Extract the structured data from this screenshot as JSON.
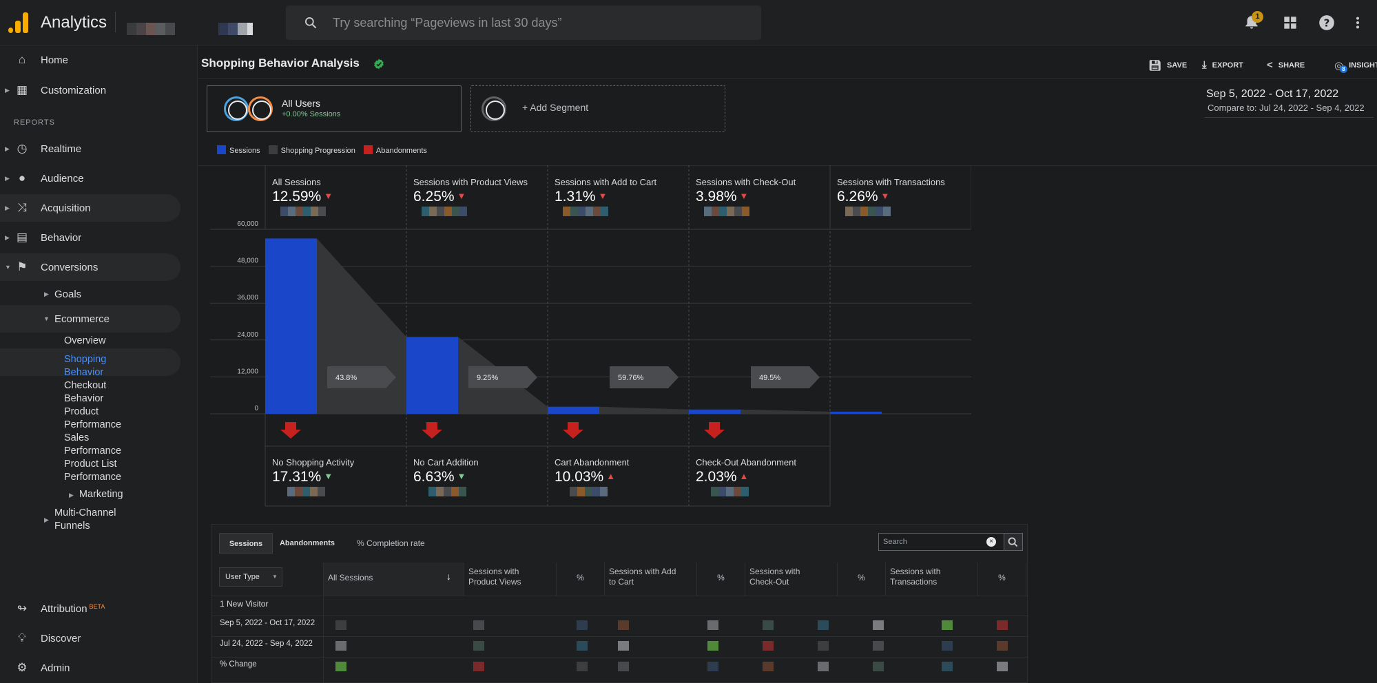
{
  "app": {
    "name": "Analytics",
    "search_placeholder": "Try searching “Pageviews in last 30 days”",
    "notification_count": "1"
  },
  "sidebar": {
    "home": "Home",
    "customization": "Customization",
    "reports_label": "REPORTS",
    "realtime": "Realtime",
    "audience": "Audience",
    "acquisition": "Acquisition",
    "behavior": "Behavior",
    "conversions": "Conversions",
    "goals": "Goals",
    "ecommerce": "Ecommerce",
    "ecom_items": [
      "Overview",
      "Shopping",
      "Behavior",
      "Checkout",
      "Behavior",
      "Product",
      "Performance",
      "Sales",
      "Performance",
      "Product List",
      "Performance"
    ],
    "marketing": "Marketing",
    "multichannel_1": "Multi-Channel",
    "multichannel_2": "Funnels",
    "attribution": "Attribution",
    "attribution_badge": "BETA",
    "discover": "Discover",
    "admin": "Admin"
  },
  "header": {
    "title": "Shopping Behavior Analysis",
    "save": "SAVE",
    "export": "EXPORT",
    "share": "SHARE",
    "insights": "INSIGHTS",
    "insights_badge": "8"
  },
  "segments": {
    "all_users": "All Users",
    "all_users_sub": "+0.00% Sessions",
    "add": "+ Add Segment"
  },
  "dates": {
    "range": "Sep 5, 2022 - Oct 17, 2022",
    "compare": "Compare to: Jul 24, 2022 - Sep 4, 2022"
  },
  "legend": {
    "sessions": "Sessions",
    "progression": "Shopping Progression",
    "abandonments": "Abandonments",
    "colors": {
      "sessions": "#1a47c9",
      "progression": "#3c3d3f",
      "abandonments": "#c5221f"
    }
  },
  "chart_data": {
    "type": "bar",
    "yticks": [
      "60,000",
      "48,000",
      "36,000",
      "24,000",
      "12,000",
      "0"
    ],
    "ylim": [
      0,
      60000
    ],
    "categories": [
      "All Sessions",
      "Sessions with Product Views",
      "Sessions with Add to Cart",
      "Sessions with Check-Out",
      "Sessions with Transactions"
    ],
    "values": [
      57000,
      25000,
      2300,
      1400,
      700
    ],
    "change_pct": [
      "12.59%",
      "6.25%",
      "1.31%",
      "3.98%",
      "6.26%"
    ],
    "progression_rates": [
      "43.8%",
      "9.25%",
      "59.76%",
      "49.5%"
    ],
    "abandonments": [
      {
        "title": "No Shopping Activity",
        "pct": "17.31%",
        "dir": "down"
      },
      {
        "title": "No Cart Addition",
        "pct": "6.63%",
        "dir": "down"
      },
      {
        "title": "Cart Abandonment",
        "pct": "10.03%",
        "dir": "up"
      },
      {
        "title": "Check-Out Abandonment",
        "pct": "2.03%",
        "dir": "up"
      }
    ]
  },
  "table": {
    "tab_sessions": "Sessions",
    "tab_abandonments": "Abandonments",
    "completion": "% Completion rate",
    "search_placeholder": "Search",
    "user_type": "User Type",
    "headers": [
      [
        "All Sessions",
        ""
      ],
      [
        "Sessions with",
        "Product Views"
      ],
      [
        "%",
        ""
      ],
      [
        "Sessions with Add",
        "to Cart"
      ],
      [
        "%",
        ""
      ],
      [
        "Sessions with",
        "Check-Out"
      ],
      [
        "%",
        ""
      ],
      [
        "Sessions with",
        "Transactions"
      ],
      [
        "%",
        ""
      ]
    ],
    "rows": [
      "1   New Visitor",
      "Sep 5, 2022 - Oct 17, 2022",
      "Jul 24, 2022 - Sep 4, 2022",
      "% Change"
    ]
  }
}
